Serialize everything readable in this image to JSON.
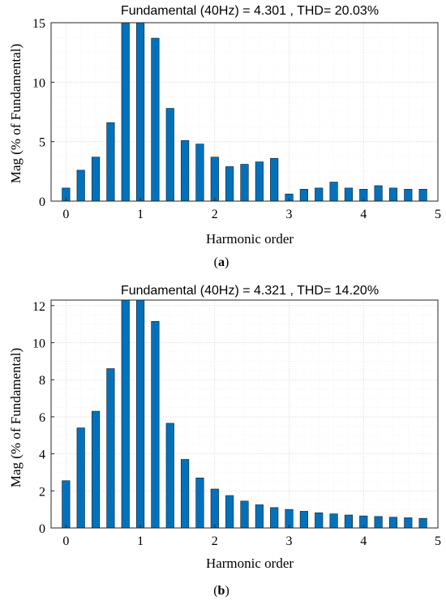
{
  "colors": {
    "bar": "#0072BD"
  },
  "chart_data": [
    {
      "type": "bar",
      "title": "Fundamental (40Hz) = 4.301 , THD= 20.03%",
      "xlabel": "Harmonic order",
      "ylabel": "Mag (% of Fundamental)",
      "caption_open": "(",
      "caption_letter": "a",
      "caption_close": ")",
      "xlim": [
        -0.2,
        5
      ],
      "ylim": [
        0,
        15
      ],
      "xticks": [
        0,
        1,
        2,
        3,
        4,
        5
      ],
      "yticks": [
        0,
        5,
        10,
        15
      ],
      "grid": true,
      "x": [
        0,
        0.2,
        0.4,
        0.6,
        0.8,
        1.0,
        1.2,
        1.4,
        1.6,
        1.8,
        2.0,
        2.2,
        2.4,
        2.6,
        2.8,
        3.0,
        3.2,
        3.4,
        3.6,
        3.8,
        4.0,
        4.2,
        4.4,
        4.6,
        4.8
      ],
      "values": [
        1.1,
        2.6,
        3.7,
        6.6,
        15,
        15,
        13.7,
        7.8,
        5.1,
        4.8,
        3.7,
        2.9,
        3.1,
        3.3,
        3.6,
        0.6,
        1.0,
        1.1,
        1.6,
        1.1,
        1.0,
        1.3,
        1.1,
        1.0,
        1.0
      ]
    },
    {
      "type": "bar",
      "title": "Fundamental (40Hz) = 4.321 , THD= 14.20%",
      "xlabel": "Harmonic order",
      "ylabel": "Mag (% of Fundamental)",
      "caption_open": "(",
      "caption_letter": "b",
      "caption_close": ")",
      "xlim": [
        -0.2,
        5
      ],
      "ylim": [
        0,
        12.3
      ],
      "xticks": [
        0,
        1,
        2,
        3,
        4,
        5
      ],
      "yticks": [
        0,
        2,
        4,
        6,
        8,
        10,
        12
      ],
      "grid": true,
      "x": [
        0,
        0.2,
        0.4,
        0.6,
        0.8,
        1.0,
        1.2,
        1.4,
        1.6,
        1.8,
        2.0,
        2.2,
        2.4,
        2.6,
        2.8,
        3.0,
        3.2,
        3.4,
        3.6,
        3.8,
        4.0,
        4.2,
        4.4,
        4.6,
        4.8
      ],
      "values": [
        2.55,
        5.4,
        6.3,
        8.6,
        12.3,
        12.3,
        11.15,
        5.65,
        3.7,
        2.7,
        2.1,
        1.75,
        1.45,
        1.25,
        1.1,
        1.0,
        0.9,
        0.82,
        0.76,
        0.7,
        0.65,
        0.62,
        0.58,
        0.55,
        0.52
      ]
    }
  ]
}
